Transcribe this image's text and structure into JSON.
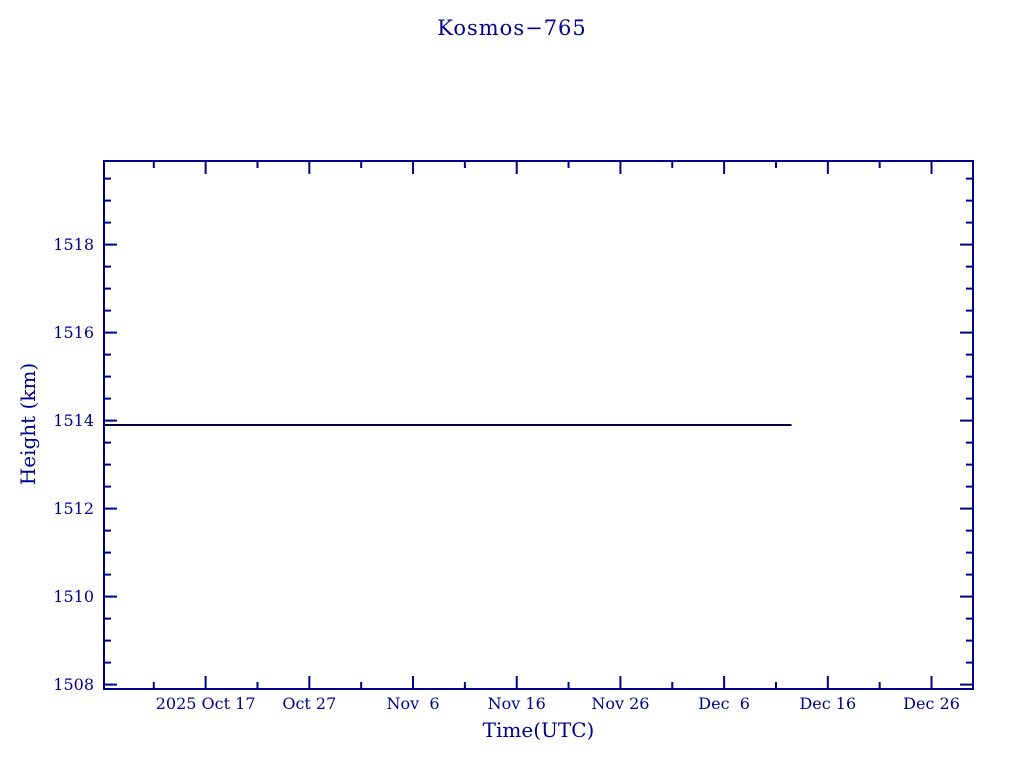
{
  "page": {
    "background_color": "#ffffff"
  },
  "chart_data": {
    "type": "line",
    "title": "Kosmos−765",
    "xlabel": "Time(UTC)",
    "ylabel": "Height (km)",
    "text_color": "#00008b",
    "axis_color": "#00008b",
    "line_color": "#000042",
    "grid": false,
    "legend": false,
    "plot_style": "box frame with inward ticks mirrored on all four sides",
    "y_axis": {
      "min": 1507.9,
      "max": 1519.9,
      "major_tick_values": [
        1508,
        1510,
        1512,
        1514,
        1516,
        1518
      ],
      "major_tick_labels": [
        "1508",
        "1510",
        "1512",
        "1514",
        "1516",
        "1518"
      ],
      "minor_tick_step": 0.5
    },
    "x_axis": {
      "day_zero_label": "2025 Oct 17",
      "min_day": -9.8,
      "max_day": 74.0,
      "major_tick_days": [
        0,
        10,
        20,
        30,
        40,
        50,
        60,
        70
      ],
      "major_tick_labels": [
        "2025 Oct 17",
        "Oct 27",
        "Nov  6",
        "Nov 16",
        "Nov 26",
        "Dec  6",
        "Dec 16",
        "Dec 26"
      ],
      "minor_tick_days": [
        -5,
        5,
        15,
        25,
        35,
        45,
        55,
        65
      ]
    },
    "series": [
      {
        "name": "Kosmos-765 height",
        "height_km": 1513.9,
        "points_day_km": [
          [
            -9.8,
            1513.9
          ],
          [
            56.5,
            1513.9
          ]
        ],
        "note": "constant height line from plot left edge (~2025 Oct 7) to ~2025 Dec 12"
      }
    ]
  }
}
